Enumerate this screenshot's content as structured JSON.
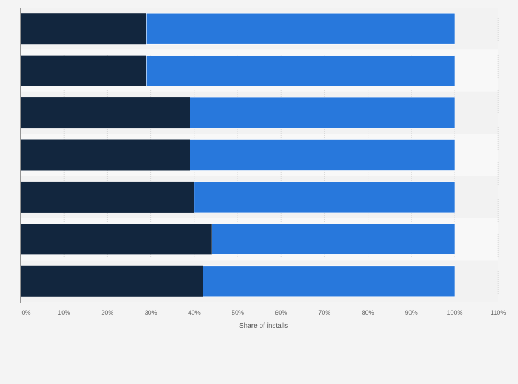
{
  "chart_data": {
    "type": "bar",
    "orientation": "horizontal",
    "stacked": true,
    "categories": [
      "",
      "",
      "",
      "",
      "",
      "",
      ""
    ],
    "series": [
      {
        "values": [
          29,
          29,
          39,
          39,
          40,
          44,
          42
        ],
        "color": "#12263e"
      },
      {
        "values": [
          71,
          71,
          61,
          61,
          60,
          56,
          58
        ],
        "color": "#2878dc"
      }
    ],
    "xlabel": "Share of installs",
    "ylabel": "",
    "xlim": [
      0,
      110
    ],
    "xticks": [
      "0%",
      "10%",
      "20%",
      "30%",
      "40%",
      "50%",
      "60%",
      "70%",
      "80%",
      "90%",
      "100%",
      "110%"
    ],
    "grid": true,
    "legend": "none"
  }
}
